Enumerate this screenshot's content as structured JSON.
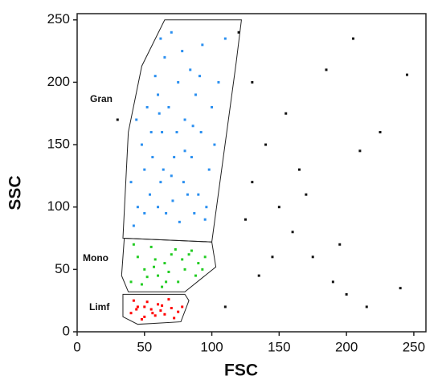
{
  "chart_data": {
    "type": "scatter",
    "x_label": "FSC",
    "y_label": "SSC",
    "xlim": [
      0,
      259
    ],
    "ylim": [
      0,
      255
    ],
    "xticks": [
      0,
      50,
      100,
      150,
      200,
      250
    ],
    "yticks": [
      0,
      50,
      100,
      150,
      200,
      250
    ],
    "series": [
      {
        "color": "#2a8ff0",
        "x": [
          45,
          50,
          55,
          60,
          65,
          70,
          75,
          80,
          85,
          90,
          95,
          42,
          48,
          52,
          58,
          62,
          66,
          72,
          78,
          82,
          88,
          92,
          98,
          105,
          110,
          40,
          44,
          54,
          62,
          63,
          68,
          71,
          76,
          84,
          87,
          93,
          100,
          102,
          56,
          64,
          74,
          79,
          86,
          91,
          96,
          50,
          60,
          70,
          80,
          61
        ],
        "values": [
          100,
          130,
          160,
          190,
          220,
          240,
          200,
          170,
          140,
          110,
          90,
          85,
          150,
          180,
          205,
          120,
          95,
          140,
          225,
          110,
          190,
          160,
          130,
          200,
          235,
          120,
          170,
          110,
          235,
          160,
          180,
          105,
          88,
          210,
          95,
          230,
          180,
          150,
          140,
          130,
          160,
          120,
          165,
          205,
          100,
          95,
          100,
          125,
          145,
          175
        ]
      },
      {
        "color": "#22cc22",
        "x": [
          40,
          45,
          50,
          55,
          60,
          65,
          70,
          75,
          80,
          85,
          90,
          95,
          42,
          48,
          58,
          63,
          68,
          73,
          78,
          88,
          52,
          57,
          66,
          83,
          93
        ],
        "values": [
          40,
          60,
          50,
          68,
          45,
          55,
          62,
          40,
          50,
          65,
          55,
          60,
          70,
          38,
          58,
          36,
          48,
          66,
          58,
          45,
          44,
          52,
          40,
          62,
          50
        ]
      },
      {
        "color": "#ff0000",
        "x": [
          40,
          45,
          50,
          55,
          60,
          65,
          70,
          75,
          42,
          48,
          52,
          58,
          62,
          68,
          72,
          44,
          50,
          56,
          63,
          78
        ],
        "values": [
          15,
          20,
          12,
          18,
          22,
          14,
          19,
          16,
          25,
          10,
          24,
          13,
          17,
          26,
          11,
          18,
          20,
          15,
          21,
          20
        ]
      },
      {
        "color": "#111111",
        "x": [
          120,
          130,
          140,
          150,
          160,
          175,
          190,
          200,
          215,
          240,
          130,
          145,
          165,
          185,
          205,
          225,
          245,
          135,
          110,
          125,
          30,
          155,
          170,
          195,
          210
        ],
        "values": [
          240,
          200,
          150,
          100,
          80,
          60,
          40,
          30,
          20,
          35,
          120,
          60,
          130,
          210,
          235,
          160,
          206,
          45,
          20,
          90,
          170,
          175,
          110,
          70,
          145
        ]
      }
    ],
    "gates": [
      {
        "label": "Gran",
        "x": [
          34,
          38,
          48,
          65,
          122,
          118,
          100
        ],
        "y": [
          75,
          160,
          213,
          250,
          250,
          215,
          72
        ]
      },
      {
        "label": "Mono",
        "x": [
          35,
          100,
          103,
          80,
          38,
          33
        ],
        "y": [
          75,
          72,
          52,
          32,
          32,
          45
        ]
      },
      {
        "label": "Limf",
        "x": [
          34,
          80,
          83,
          77,
          45,
          34
        ],
        "y": [
          30,
          30,
          25,
          8,
          6,
          12
        ]
      }
    ]
  }
}
